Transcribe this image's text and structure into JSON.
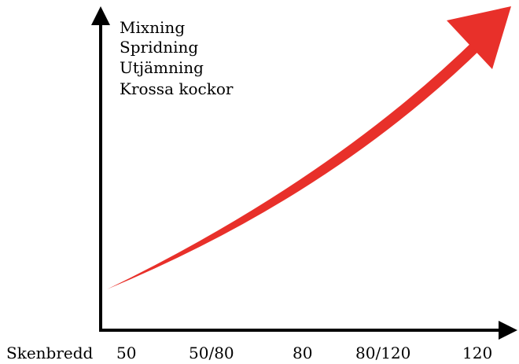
{
  "diagram": {
    "y_items": [
      "Mixning",
      "Spridning",
      "Utjämning",
      "Krossa kockor"
    ],
    "x_label": "Skenbredd",
    "x_ticks": [
      "50",
      "50/80",
      "80",
      "80/120",
      "120"
    ],
    "colors": {
      "axis": "#000000",
      "trend_arrow": "#e8302a"
    }
  }
}
